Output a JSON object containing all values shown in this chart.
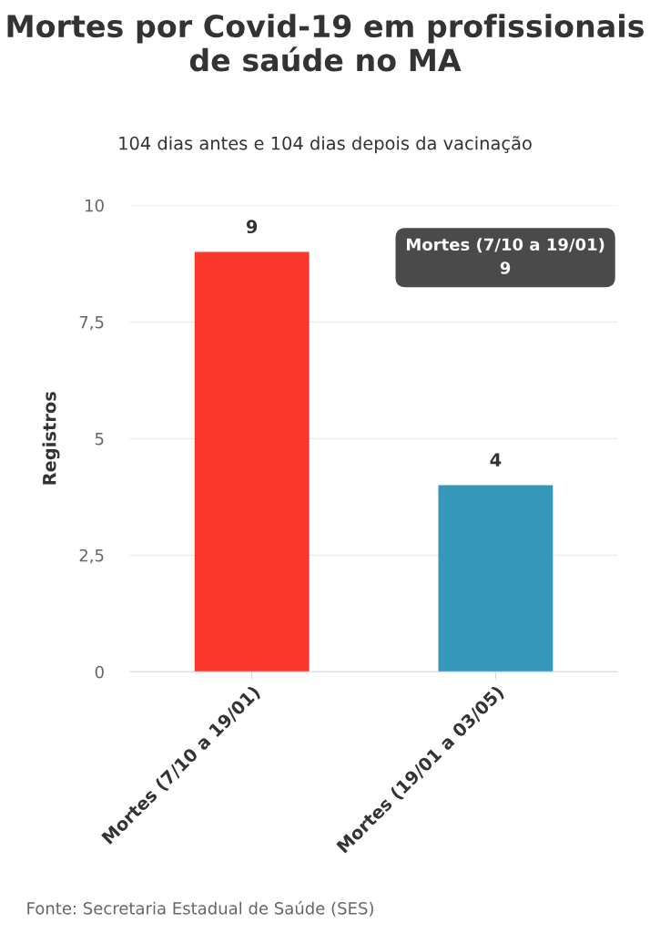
{
  "chart_data": {
    "type": "bar",
    "title": "Mortes por Covid-19 em profissionais\nde saúde no MA",
    "subtitle": "104 dias antes e 104 dias depois da vacinação",
    "ylabel": "Registros",
    "categories": [
      "Mortes (7/10 a 19/01)",
      "Mortes (19/01 a 03/05)"
    ],
    "values": [
      9,
      4
    ],
    "colors": [
      "#fb372c",
      "#3598bb"
    ],
    "ylim": [
      0,
      10
    ],
    "yticks": [
      0,
      {
        "value": 2.5,
        "label": "2,5"
      },
      5,
      {
        "value": 7.5,
        "label": "7,5"
      },
      10
    ],
    "grid": "y",
    "data_labels": true,
    "legend": false,
    "annotations": [
      "Mortes (7/10 a 19/01)\n9",
      "Fonte: Secretaria Estadual de Saúde (SES)"
    ]
  }
}
